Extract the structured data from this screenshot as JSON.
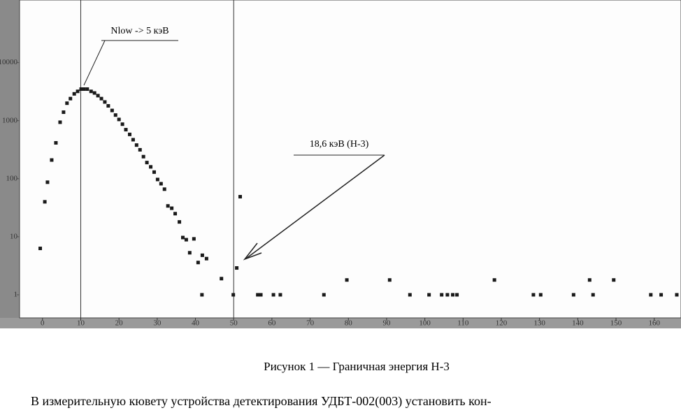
{
  "chart_data": {
    "type": "scatter",
    "x": [
      -0.6,
      0.6,
      1.3,
      2.4,
      3.5,
      4.6,
      5.5,
      6.4,
      7.3,
      8.3,
      9.2,
      10.1,
      10.8,
      11.7,
      12.7,
      13.6,
      14.5,
      15.4,
      16.3,
      17.2,
      18.2,
      19.1,
      20,
      20.9,
      21.8,
      22.8,
      23.7,
      24.6,
      25.5,
      26.4,
      27.3,
      28.3,
      29.2,
      30.1,
      31,
      31.9,
      32.8,
      33.8,
      34.7,
      35.8,
      36.7,
      37.6,
      38.5,
      39.6,
      40.7,
      41.8,
      42.9,
      41.7,
      46.8,
      49.9,
      50.8,
      51.7,
      56.3,
      57.1,
      60.4,
      62.2,
      73.6,
      79.6,
      90.8,
      96.1,
      101.1,
      104.4,
      105.9,
      107.3,
      108.4,
      118.2,
      128.4,
      130.3,
      138.9,
      143.1,
      144,
      149.4,
      159.1,
      161.8,
      165.9
    ],
    "values": [
      6.3,
      40,
      87,
      210,
      415,
      940,
      1400,
      2000,
      2400,
      2900,
      3200,
      3500,
      3500,
      3500,
      3200,
      3000,
      2700,
      2400,
      2100,
      1800,
      1500,
      1250,
      1050,
      870,
      700,
      580,
      470,
      380,
      315,
      240,
      190,
      160,
      130,
      97,
      82,
      66,
      34,
      31,
      25,
      18,
      9.7,
      8.9,
      5.3,
      9.2,
      3.6,
      4.8,
      4.2,
      1,
      1.9,
      1,
      2.9,
      49,
      1,
      1,
      1,
      1,
      1,
      1.8,
      1.8,
      1,
      1,
      1,
      1,
      1,
      1,
      1.8,
      1,
      1,
      1,
      1.8,
      1,
      1.8,
      1,
      1,
      1
    ],
    "color": "#1a1a1a",
    "xlim": [
      -6,
      167
    ],
    "ylim": [
      0.4,
      120000
    ],
    "log_y": true,
    "xticks": [
      0,
      10,
      20,
      30,
      40,
      50,
      60,
      70,
      80,
      90,
      100,
      110,
      120,
      130,
      140,
      150,
      160
    ],
    "yticks": [
      1,
      10,
      100,
      1000,
      10000
    ],
    "markers": [
      10,
      50
    ],
    "annotations": [
      "Nlow -> 5 кэВ",
      "18,6 кэВ (Н-3)"
    ]
  },
  "caption": "Рисунок 1 — Граничная энергия Н-3",
  "body": "В измерительную кювету устройства детектирования УДБТ-002(003) установить кон-"
}
